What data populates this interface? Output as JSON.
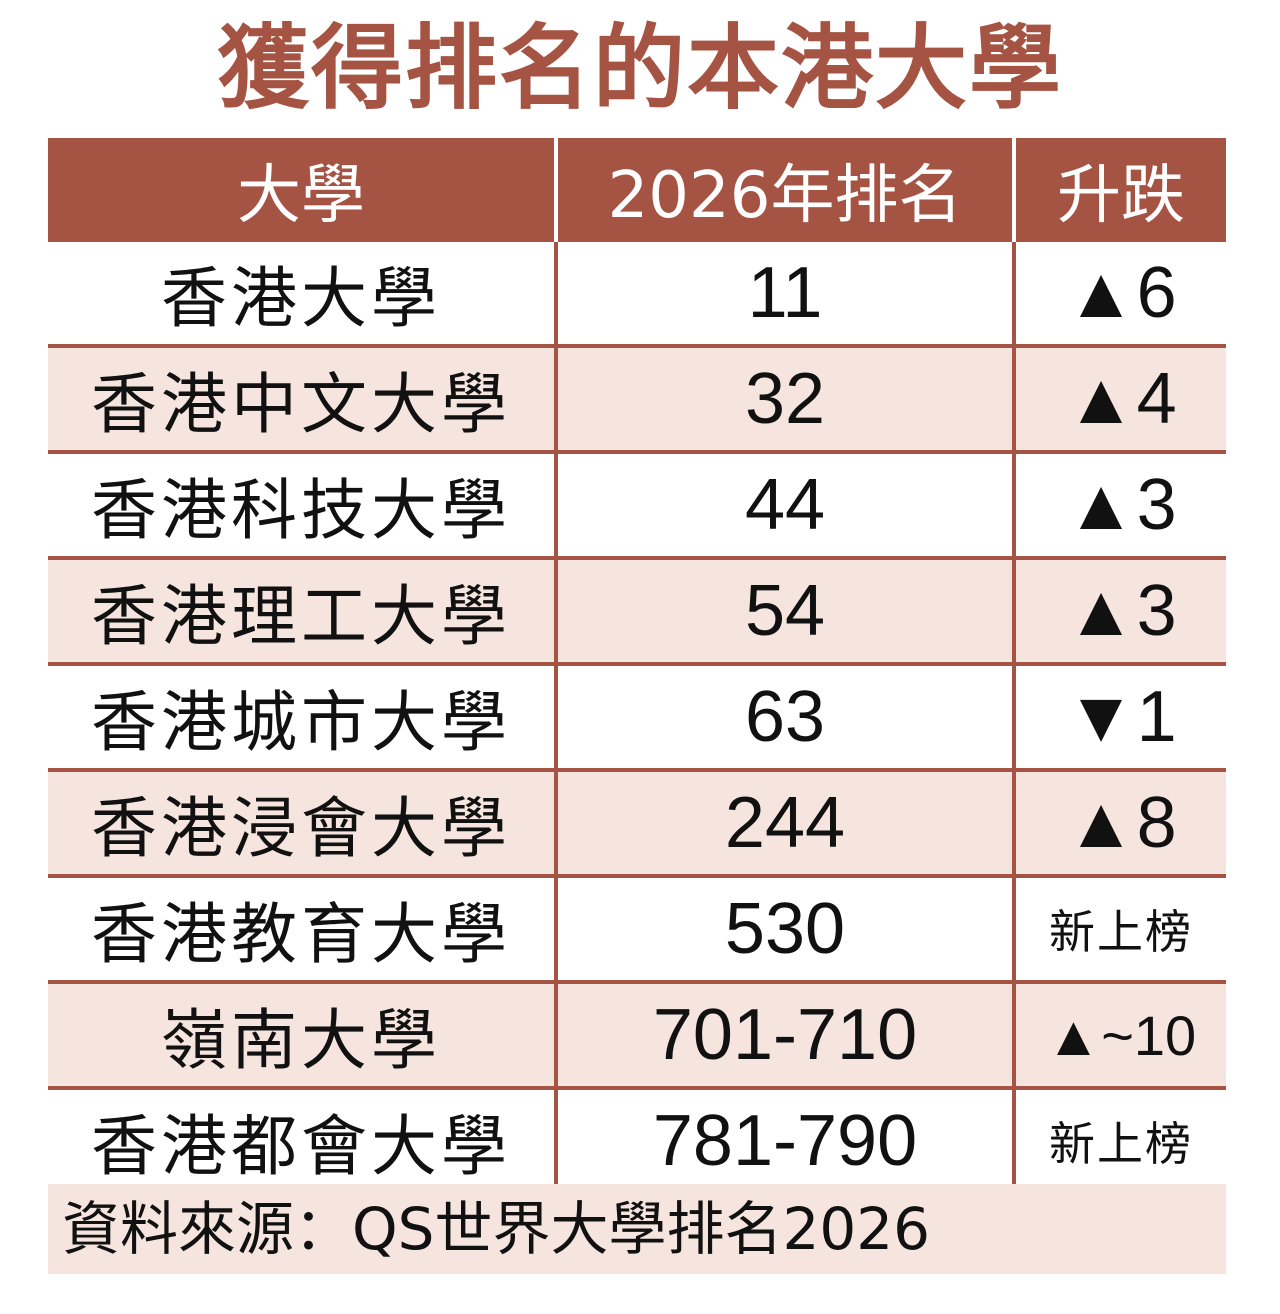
{
  "title": "獲得排名的本港大學",
  "table": {
    "headers": [
      "大學",
      "2026年排名",
      "升跌"
    ],
    "rows": [
      {
        "university": "香港大學",
        "rank": "11",
        "change": "▲6"
      },
      {
        "university": "香港中文大學",
        "rank": "32",
        "change": "▲4"
      },
      {
        "university": "香港科技大學",
        "rank": "44",
        "change": "▲3"
      },
      {
        "university": "香港理工大學",
        "rank": "54",
        "change": "▲3"
      },
      {
        "university": "香港城市大學",
        "rank": "63",
        "change": "▼1"
      },
      {
        "university": "香港浸會大學",
        "rank": "244",
        "change": "▲8"
      },
      {
        "university": "香港教育大學",
        "rank": "530",
        "change": "新上榜"
      },
      {
        "university": "嶺南大學",
        "rank": "701-710",
        "change": "▲~10"
      },
      {
        "university": "香港都會大學",
        "rank": "781-790",
        "change": "新上榜"
      }
    ]
  },
  "source": "資料來源：QS世界大學排名2026",
  "colors": {
    "accent": "#a55343",
    "row_alt": "#f5e5de"
  }
}
